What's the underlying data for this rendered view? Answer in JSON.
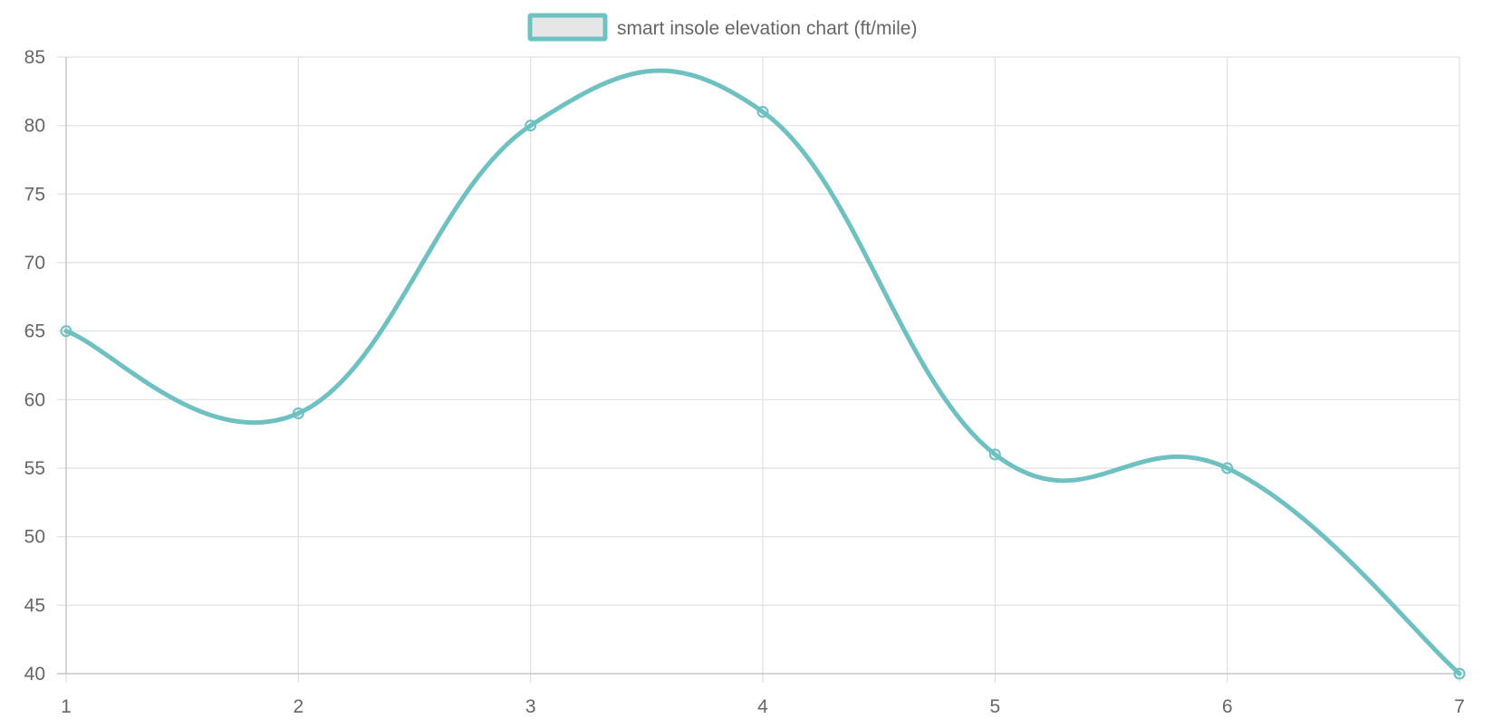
{
  "chart_data": {
    "type": "line",
    "x": [
      1,
      2,
      3,
      4,
      5,
      6,
      7
    ],
    "series": [
      {
        "name": "smart insole elevation chart (ft/mile)",
        "values": [
          65,
          59,
          80,
          81,
          56,
          55,
          40
        ],
        "color": "#6fc0c0"
      }
    ],
    "x_tick_labels": [
      "1",
      "2",
      "3",
      "4",
      "5",
      "6",
      "7"
    ],
    "y_ticks": [
      40,
      45,
      50,
      55,
      60,
      65,
      70,
      75,
      80,
      85
    ],
    "ylim": [
      40,
      85
    ],
    "xlim": [
      1,
      7
    ],
    "grid": true,
    "legend_position": "top-center",
    "legend_fill": "#e6e6e6",
    "grid_color": "#e0e0e0",
    "axis_color": "#c8c8c8",
    "text_color": "#666666"
  }
}
